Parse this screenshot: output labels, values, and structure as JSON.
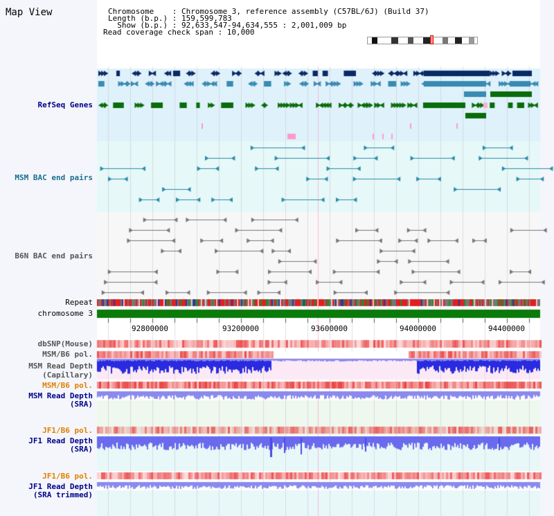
{
  "page_title": "Map View",
  "info": {
    "chromosome": "Chromosome    : Chromosome 3, reference assembly (C57BL/6J) (Build 37)",
    "length": "Length (b.p.) : 159,599,783",
    "show": "  Show (b.p.) : 92,633,547-94,634,555 : 2,001,009 bp",
    "coverage": "Read coverage check span : 10,000"
  },
  "tracks": {
    "refseq": "RefSeq Genes",
    "msm_bac": "MSM BAC end pairs",
    "b6n_bac": "B6N BAC end pairs",
    "repeat": "Repeat",
    "chromosome": "chromosome 3",
    "dbsnp": "dbSNP(Mouse)",
    "msm_b6_pol_1": "MSM/B6 pol.",
    "msm_depth_cap_1": "MSM Read Depth",
    "msm_depth_cap_2": "(Capillary)",
    "msm_b6_pol_2": "MSM/B6 pol.",
    "msm_depth_sra_1": "MSM Read Depth",
    "msm_depth_sra_2": "(SRA)",
    "jf1_b6_pol_1": "JF1/B6 pol.",
    "jf1_depth_sra_1": "JF1 Read Depth",
    "jf1_depth_sra_2": "(SRA)",
    "jf1_b6_pol_2": "JF1/B6 pol.",
    "jf1_depth_trim_1": "JF1 Read Depth",
    "jf1_depth_trim_2": "(SRA trimmed)"
  },
  "axis_ticks": [
    "92800000",
    "93200000",
    "93600000",
    "94000000",
    "94400000"
  ],
  "colors": {
    "refseq_bg": "#dff2fb",
    "msm_bac_bg": "#e6f8f8",
    "b6n_bac_bg": "#f6f6f6",
    "pol_bg": "#fbe6f3",
    "depth_bg": "#eef6ee",
    "gene_dark": "#0a2a66",
    "gene_mid": "#3a8ab2",
    "gene_green": "#0a6b0a",
    "msm_line": "#2a8aa8",
    "b6n_line": "#777777",
    "chromosome_bar": "#0a7a0a",
    "depth_blue": "#2a2ae0",
    "depth_lavender": "#8a8aee",
    "label_blue": "#00008b",
    "label_teal": "#1a6f8f",
    "label_gray": "#555555",
    "label_orange": "#e08000"
  }
}
